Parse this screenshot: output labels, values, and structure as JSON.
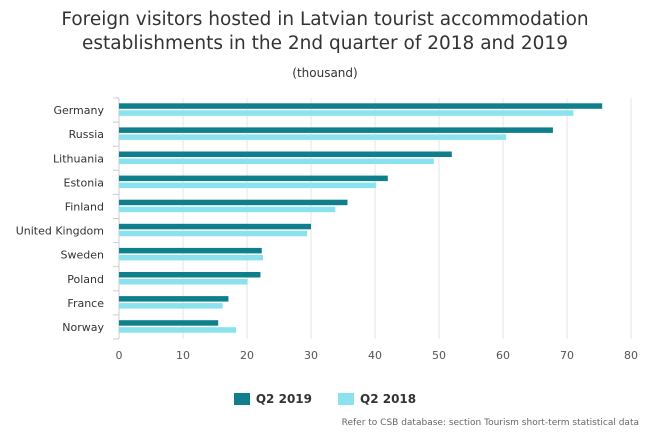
{
  "chart_data": {
    "type": "bar",
    "orientation": "horizontal",
    "title": "Foreign visitors hosted in Latvian tourist accommodation establishments in the 2nd quarter of 2018 and 2019",
    "subtitle": "(thousand)",
    "categories": [
      "Germany",
      "Russia",
      "Lithuania",
      "Estonia",
      "Finland",
      "United Kingdom",
      "Sweden",
      "Poland",
      "France",
      "Norway"
    ],
    "series": [
      {
        "name": "Q2 2019",
        "color": "#107f8c",
        "values": [
          75.5,
          67.8,
          52.0,
          42.0,
          35.7,
          30.0,
          22.3,
          22.1,
          17.1,
          15.5
        ]
      },
      {
        "name": "Q2 2018",
        "color": "#8ae2ee",
        "values": [
          71.0,
          60.5,
          49.2,
          40.2,
          33.8,
          29.4,
          22.5,
          20.1,
          16.2,
          18.3
        ]
      }
    ],
    "xlim": [
      0,
      80
    ],
    "xticks": [
      0,
      10,
      20,
      30,
      40,
      50,
      60,
      70,
      80
    ],
    "grid": true,
    "legend_position": "bottom"
  },
  "credit": "Refer to CSB database: section Tourism short-term statistical data"
}
